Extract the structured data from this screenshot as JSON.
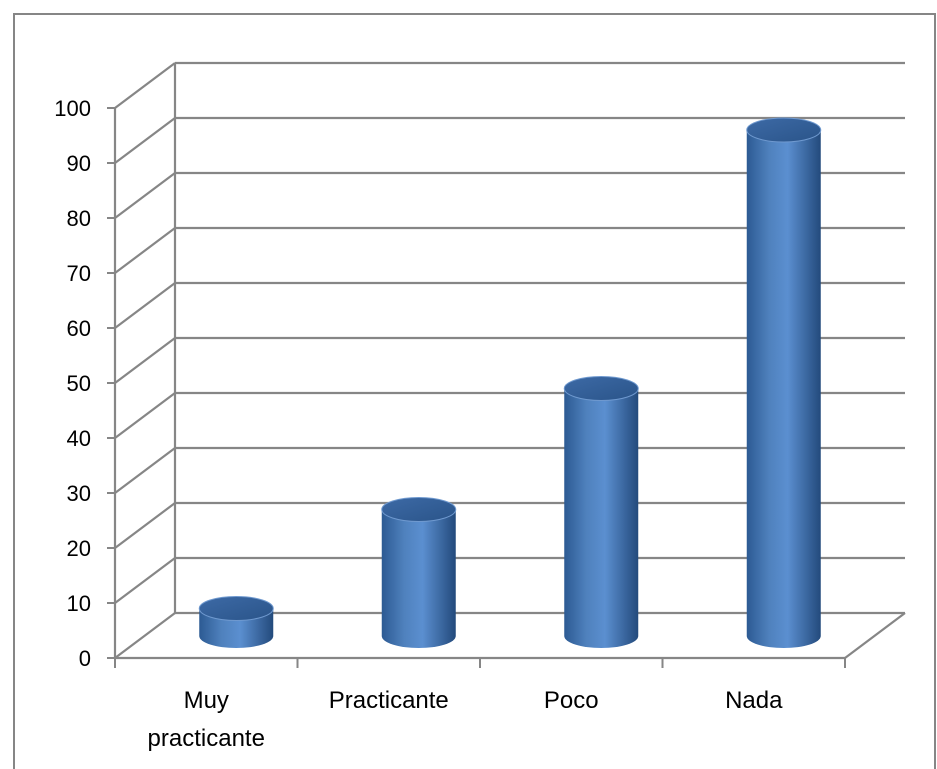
{
  "chart_data": {
    "type": "bar",
    "style": "3d-cylinder",
    "categories": [
      "Muy practicante",
      "Practicante",
      "Poco",
      "Nada"
    ],
    "category_lines": [
      [
        "Muy",
        "practicante"
      ],
      [
        "Practicante"
      ],
      [
        "Poco"
      ],
      [
        "Nada"
      ]
    ],
    "values": [
      5,
      23,
      45,
      92
    ],
    "title": "",
    "xlabel": "",
    "ylabel": "",
    "ylim": [
      0,
      100
    ],
    "yticks": [
      0,
      10,
      20,
      30,
      40,
      50,
      60,
      70,
      80,
      90,
      100
    ],
    "ytick_labels": [
      "0",
      "10",
      "20",
      "30",
      "40",
      "50",
      "60",
      "70",
      "80",
      "90",
      "100"
    ],
    "grid": true,
    "legend": "none",
    "bar_color": "#4f81bd",
    "grid_color": "#868686"
  }
}
